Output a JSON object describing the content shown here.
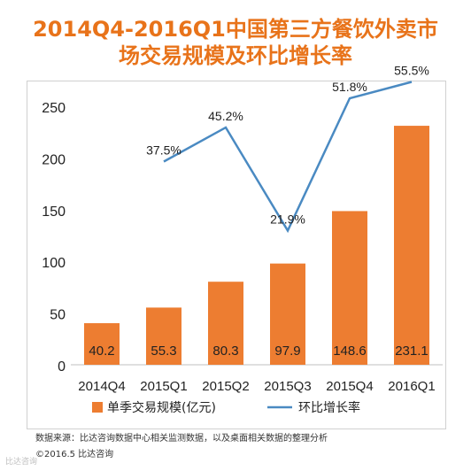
{
  "title_line1": "2014Q4-2016Q1中国第三方餐饮外卖市",
  "title_line2": "场交易规模及环比增长率",
  "source_note": "数据来源：比达咨询数据中心相关监测数据，以及桌面相关数据的整理分析",
  "copyright": "©2016.5  比达咨询",
  "watermark": "比达咨询",
  "colors": {
    "bar": "#ed7d31",
    "line": "#4a8ac2",
    "title": "#e8731a"
  },
  "chart_data": {
    "type": "bar",
    "categories": [
      "2014Q4",
      "2015Q1",
      "2015Q2",
      "2015Q3",
      "2015Q4",
      "2016Q1"
    ],
    "ylim": [
      0,
      250
    ],
    "yticks": [
      "0",
      "50",
      "100",
      "150",
      "200",
      "250"
    ],
    "grid": false,
    "legend_position": "bottom",
    "series": [
      {
        "name": "单季交易规模(亿元)",
        "type": "bar",
        "values": [
          40.2,
          55.3,
          80.3,
          97.9,
          148.6,
          231.1
        ],
        "labels": [
          "40.2",
          "55.3",
          "80.3",
          "97.9",
          "148.6",
          "231.1"
        ]
      },
      {
        "name": "环比增长率",
        "type": "line",
        "values": [
          null,
          37.5,
          45.2,
          21.9,
          51.8,
          55.5
        ],
        "labels": [
          "",
          "37.5%",
          "45.2%",
          "21.9%",
          "51.8%",
          "55.5%"
        ]
      }
    ]
  }
}
